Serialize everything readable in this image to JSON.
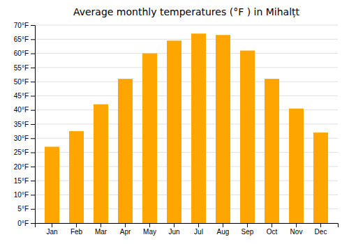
{
  "chart_data": {
    "type": "bar",
    "title": "Average monthly temperatures (°F ) in Mihalțt",
    "categories": [
      "Jan",
      "Feb",
      "Mar",
      "Apr",
      "May",
      "Jun",
      "Jul",
      "Aug",
      "Sep",
      "Oct",
      "Nov",
      "Dec"
    ],
    "values": [
      27,
      32.5,
      42,
      51,
      60,
      64.5,
      67,
      66.5,
      61,
      51,
      40.5,
      32
    ],
    "color": "#FFA500",
    "ylim": [
      0,
      70
    ],
    "yticks": [
      {
        "value": 0,
        "label": "0°F"
      },
      {
        "value": 5,
        "label": "5°F"
      },
      {
        "value": 10,
        "label": "10°F"
      },
      {
        "value": 15,
        "label": "15°F"
      },
      {
        "value": 20,
        "label": "20°F"
      },
      {
        "value": 25,
        "label": "25°F"
      },
      {
        "value": 30,
        "label": "30°F"
      },
      {
        "value": 35,
        "label": "35°F"
      },
      {
        "value": 40,
        "label": "40°F"
      },
      {
        "value": 45,
        "label": "45°F"
      },
      {
        "value": 50,
        "label": "50°F"
      },
      {
        "value": 55,
        "label": "55°F"
      },
      {
        "value": 60,
        "label": "60°F"
      },
      {
        "value": 65,
        "label": "65°F"
      },
      {
        "value": 70,
        "label": "70°F"
      }
    ],
    "grid": true
  }
}
